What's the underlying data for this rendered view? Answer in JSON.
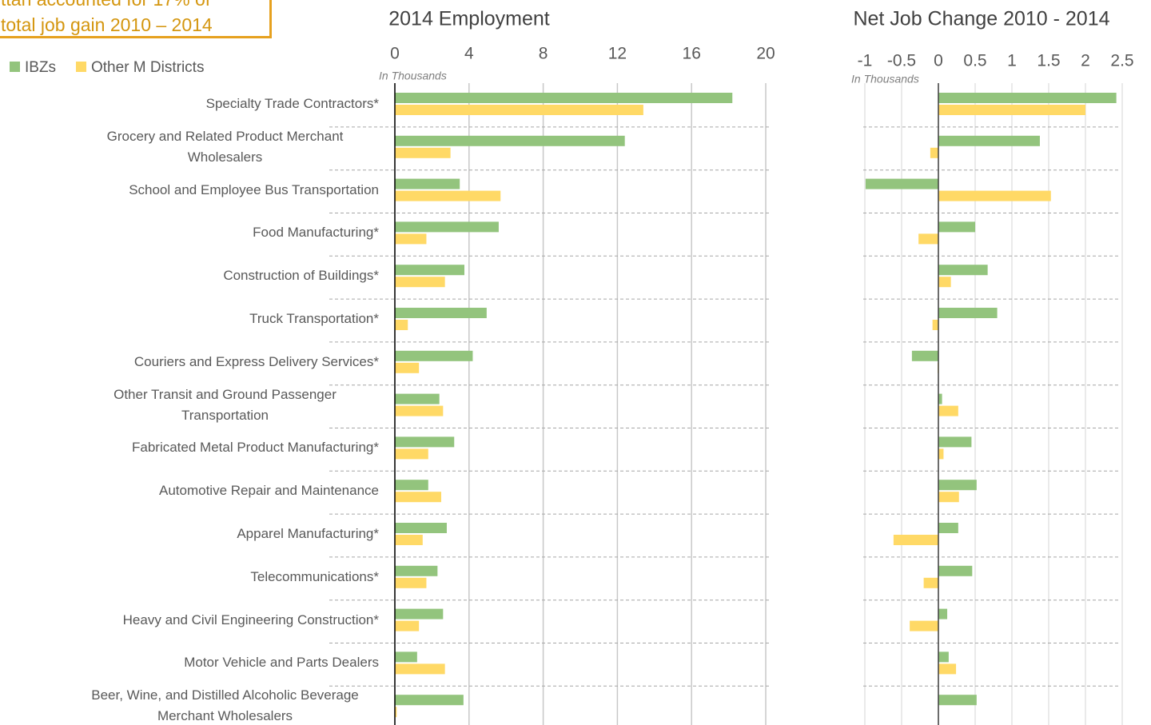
{
  "annotation": {
    "lines": [
      "ttan accounted for 17% of",
      "total job gain 2010 – 2014"
    ]
  },
  "chart_data": [
    {
      "type": "bar",
      "orientation": "horizontal",
      "title": "2014 Employment",
      "axis_label": "In Thousands",
      "categories": [
        "Specialty Trade Contractors*",
        "Grocery and Related Product Merchant Wholesalers",
        "School and Employee Bus Transportation",
        "Food Manufacturing*",
        "Construction of Buildings*",
        "Truck Transportation*",
        "Couriers and Express Delivery Services*",
        "Other Transit and Ground Passenger Transportation",
        "Fabricated Metal Product Manufacturing*",
        "Automotive Repair and Maintenance",
        "Apparel Manufacturing*",
        "Telecommunications*",
        "Heavy and Civil Engineering Construction*",
        "Motor Vehicle and Parts Dealers",
        "Beer, Wine, and Distilled Alcoholic Beverage Merchant Wholesalers"
      ],
      "series": [
        {
          "name": "IBZs",
          "color": "#93c47d",
          "values": [
            18.2,
            12.4,
            3.5,
            5.6,
            3.75,
            4.95,
            4.2,
            2.4,
            3.2,
            1.8,
            2.8,
            2.3,
            2.6,
            1.2,
            3.7
          ]
        },
        {
          "name": "Other M Districts",
          "color": "#ffd966",
          "values": [
            13.4,
            3.0,
            5.7,
            1.7,
            2.7,
            0.7,
            1.3,
            2.6,
            1.8,
            2.5,
            1.5,
            1.7,
            1.3,
            2.7,
            0.1
          ]
        }
      ],
      "xlim": [
        0,
        20
      ],
      "xticks": [
        0,
        4,
        8,
        12,
        16,
        20
      ],
      "grid": true
    },
    {
      "type": "bar",
      "orientation": "horizontal",
      "title": "Net Job Change 2010 - 2014",
      "axis_label": "In Thousands",
      "series": [
        {
          "color": "#93c47d",
          "values": [
            2.42,
            1.38,
            -0.99,
            0.5,
            0.67,
            0.8,
            -0.36,
            0.05,
            0.45,
            0.52,
            0.27,
            0.46,
            0.12,
            0.14,
            0.52
          ]
        },
        {
          "color": "#ffd966",
          "values": [
            2.0,
            -0.11,
            1.53,
            -0.27,
            0.17,
            -0.08,
            -0.01,
            0.27,
            0.07,
            0.28,
            -0.61,
            -0.2,
            -0.39,
            0.24,
            0
          ]
        }
      ],
      "xlim": [
        -1,
        2.5
      ],
      "xticks": [
        -1,
        -0.5,
        0,
        0.5,
        1,
        1.5,
        2,
        2.5
      ],
      "grid": true
    }
  ]
}
